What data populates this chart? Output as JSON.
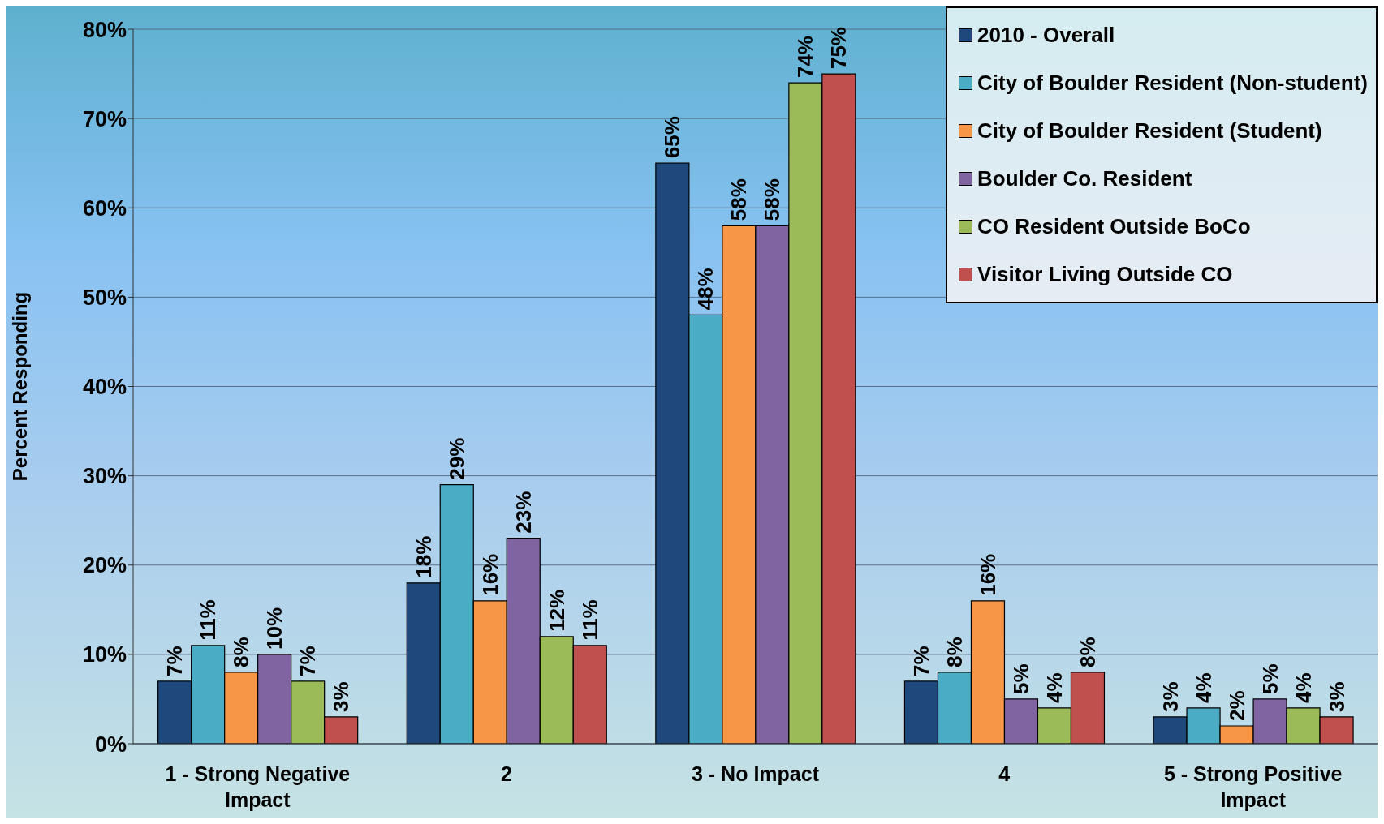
{
  "chart_data": {
    "type": "bar",
    "ylabel": "Percent Responding",
    "categories": [
      "1 - Strong Negative Impact",
      "2",
      "3 - No Impact",
      "4",
      "5 - Strong Positive Impact"
    ],
    "series": [
      {
        "name": "2010 - Overall",
        "color": "#1f497d",
        "values": [
          7,
          18,
          65,
          7,
          3
        ],
        "value_labels": [
          "7%",
          "18%",
          "65%",
          "7%",
          "3%"
        ]
      },
      {
        "name": "City of Boulder Resident (Non-student)",
        "color": "#4bacc6",
        "values": [
          11,
          29,
          48,
          8,
          4
        ],
        "value_labels": [
          "11%",
          "29%",
          "48%",
          "8%",
          "4%"
        ]
      },
      {
        "name": "City of Boulder Resident (Student)",
        "color": "#f79646",
        "values": [
          8,
          16,
          58,
          16,
          2
        ],
        "value_labels": [
          "8%",
          "16%",
          "58%",
          "16%",
          "2%"
        ]
      },
      {
        "name": "Boulder Co. Resident",
        "color": "#8064a2",
        "values": [
          10,
          23,
          58,
          5,
          5
        ],
        "value_labels": [
          "10%",
          "23%",
          "58%",
          "5%",
          "5%"
        ]
      },
      {
        "name": "CO Resident Outside BoCo",
        "color": "#9bbb59",
        "values": [
          7,
          12,
          74,
          4,
          4
        ],
        "value_labels": [
          "7%",
          "12%",
          "74%",
          "4%",
          "4%"
        ]
      },
      {
        "name": "Visitor Living Outside CO",
        "color": "#c0504d",
        "values": [
          3,
          11,
          75,
          8,
          3
        ],
        "value_labels": [
          "3%",
          "11%",
          "75%",
          "8%",
          "3%"
        ]
      }
    ],
    "ylim": [
      0,
      80
    ],
    "yticks": [
      {
        "value": 0,
        "label": "0%"
      },
      {
        "value": 10,
        "label": "10%"
      },
      {
        "value": 20,
        "label": "20%"
      },
      {
        "value": 30,
        "label": "30%"
      },
      {
        "value": 40,
        "label": "40%"
      },
      {
        "value": 50,
        "label": "50%"
      },
      {
        "value": 60,
        "label": "60%"
      },
      {
        "value": 70,
        "label": "70%"
      },
      {
        "value": 80,
        "label": "80%"
      }
    ],
    "grid": "y",
    "legend": "top right"
  }
}
